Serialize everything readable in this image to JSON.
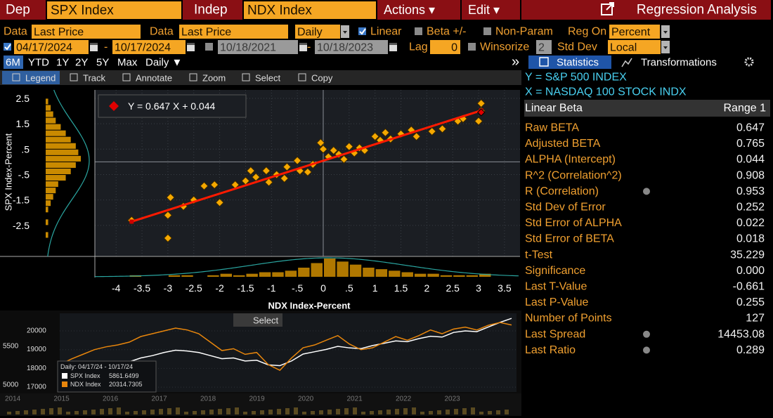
{
  "header": {
    "dep_label": "Dep",
    "dep": "SPX Index",
    "indep_label": "Indep",
    "indep": "NDX Index",
    "actions": "Actions ▾",
    "edit": "Edit ▾",
    "title": "Regression Analysis"
  },
  "row1": {
    "data1_label": "Data",
    "data1": "Last Price",
    "data2_label": "Data",
    "data2": "Last Price",
    "freq": "Daily",
    "linear": "Linear",
    "beta_pm": "Beta +/-",
    "non_param": "Non-Param",
    "reg_on_label": "Reg On",
    "reg_on": "Percent"
  },
  "row2": {
    "start": "04/17/2024",
    "range_sep": "-",
    "end": "10/17/2024",
    "start2": "10/18/2021",
    "end2": "10/18/2023",
    "lag_label": "Lag",
    "lag": "0",
    "winsorize": "Winsorize",
    "winsorize_value": "2",
    "std_dev": "Std Dev",
    "std_dev_value": "Local"
  },
  "periods": [
    "6M",
    "YTD",
    "1Y",
    "2Y",
    "5Y",
    "Max"
  ],
  "period_freq": "Daily ▼",
  "expand": "»",
  "tabs": [
    "Statistics",
    "Transformations"
  ],
  "toolbar": [
    "Legend",
    "Track",
    "Annotate",
    "Zoom",
    "Select",
    "Copy"
  ],
  "stats": {
    "y_line": "Y = S&P 500 INDEX",
    "x_line": "X = NASDAQ 100 STOCK INDX",
    "head": [
      "Linear Beta",
      "Range 1"
    ],
    "rows": [
      [
        "Raw BETA",
        "0.647"
      ],
      [
        "Adjusted BETA",
        "0.765"
      ],
      [
        "ALPHA (Intercept)",
        "0.044"
      ],
      [
        "R^2 (Correlation^2)",
        "0.908"
      ],
      [
        "R (Correlation)",
        "0.953"
      ],
      [
        "Std Dev of Error",
        "0.252"
      ],
      [
        "Std Error of ALPHA",
        "0.022"
      ],
      [
        "Std Error of BETA",
        "0.018"
      ],
      [
        "t-Test",
        "35.229"
      ],
      [
        "Significance",
        "0.000"
      ],
      [
        "Last T-Value",
        "-0.661"
      ],
      [
        "Last P-Value",
        "0.255"
      ],
      [
        "Number of Points",
        "127"
      ],
      [
        "Last Spread",
        "14453.08"
      ],
      [
        "Last Ratio",
        "0.289"
      ]
    ]
  },
  "chart_data": [
    {
      "type": "scatter",
      "x_title": "NDX Index-Percent",
      "y_title": "SPX Index-Percent",
      "color": "#f5a800",
      "x": [
        -3.7,
        -3.0,
        -3.0,
        -2.95,
        -2.7,
        -2.5,
        -2.3,
        -2.1,
        -2.0,
        -1.7,
        -1.5,
        -1.4,
        -1.3,
        -1.1,
        -1.05,
        -0.9,
        -0.75,
        -0.7,
        -0.5,
        -0.45,
        -0.3,
        -0.2,
        -0.05,
        0,
        0.1,
        0.2,
        0.3,
        0.4,
        0.5,
        0.6,
        0.7,
        0.8,
        1.0,
        1.1,
        1.2,
        1.3,
        1.5,
        1.7,
        1.8,
        2.1,
        2.3,
        2.6,
        2.7,
        3.0,
        3.05,
        3.05
      ],
      "values": [
        -2.3,
        -2.1,
        -3.0,
        -1.4,
        -1.75,
        -1.5,
        -0.95,
        -0.9,
        -1.6,
        -0.9,
        -0.75,
        -0.35,
        -0.6,
        -0.35,
        -0.8,
        -0.5,
        -0.65,
        -0.2,
        0.05,
        -0.35,
        -0.4,
        -0.1,
        0.75,
        0.5,
        0.2,
        0.45,
        0.3,
        0.1,
        0.6,
        0.35,
        0.55,
        0.45,
        1.0,
        0.85,
        1.15,
        0.9,
        1.1,
        1.25,
        1.0,
        1.2,
        1.3,
        1.6,
        1.7,
        1.6,
        2.0,
        2.3
      ],
      "last_point": {
        "x": 3.05,
        "value": 1.95,
        "color": "#e00000"
      },
      "fit": {
        "label": "Y = 0.647 X + 0.044",
        "color": "#ff1a00",
        "x": [
          -3.7,
          3.05
        ],
        "values": [
          -2.35,
          2.02
        ]
      },
      "xlim": [
        -4.41,
        3.8
      ],
      "ylim": [
        -3.72,
        2.83
      ],
      "xticks": [
        -4,
        -3.5,
        -3,
        -2.5,
        -2,
        -1.5,
        -1,
        {
          "value": -0.5,
          "label": "-.5"
        },
        0,
        {
          "value": 0.5,
          "label": ".5"
        },
        1,
        1.5,
        2,
        2.5,
        3,
        3.5
      ],
      "yticks": [
        2.5,
        1.5,
        {
          "value": 0.5,
          "label": ".5"
        },
        {
          "value": -0.5,
          "label": "-.5"
        },
        -1.5,
        -2.5
      ],
      "grid": true
    },
    {
      "type": "histogram",
      "orientation": "horizontal",
      "color": "#c98a00",
      "bins": [
        -3,
        -2.75,
        -2.5,
        -2.25,
        -2,
        -1.75,
        -1.5,
        -1.25,
        -1,
        -0.75,
        -0.5,
        -0.25,
        0,
        0.25,
        0.5,
        0.75,
        1,
        1.25,
        1.5,
        1.75,
        2,
        2.25,
        2.5
      ],
      "values": [
        1,
        0,
        1,
        0,
        1,
        2,
        3,
        4,
        5,
        8,
        10,
        12,
        14,
        13,
        12,
        10,
        8,
        6,
        4,
        3,
        2,
        1
      ]
    },
    {
      "type": "histogram",
      "orientation": "vertical",
      "color": "#b07800",
      "bins": [
        -4,
        -3.75,
        -3.5,
        -3.25,
        -3,
        -2.75,
        -2.5,
        -2.25,
        -2,
        -1.75,
        -1.5,
        -1.25,
        -1,
        -0.75,
        -0.5,
        -0.25,
        0,
        0.25,
        0.5,
        0.75,
        1,
        1.25,
        1.5,
        1.75,
        2,
        2.25,
        2.5,
        2.75,
        3,
        3.25,
        3.5
      ],
      "values": [
        0,
        1,
        0,
        0,
        1,
        1,
        0,
        1,
        2,
        1,
        2,
        3,
        3,
        4,
        6,
        9,
        12,
        10,
        8,
        6,
        5,
        4,
        3,
        2,
        2,
        1,
        1,
        1,
        2,
        0
      ]
    },
    {
      "type": "line",
      "select": "Select",
      "legend_title": "Daily: 04/17/24 - 10/17/24",
      "ylim": [
        16740,
        20900
      ],
      "yticks": [
        20000,
        19000,
        18000,
        17000
      ],
      "y2lim": [
        4909,
        5918
      ],
      "y2ticks": [
        5500,
        5000
      ],
      "years": [
        "2014",
        "2015",
        "2016",
        "2017",
        "2018",
        "2019",
        "2020",
        "2021",
        "2022",
        "2023"
      ],
      "series": [
        {
          "name": "SPX Index",
          "color": "#ffffff",
          "axis": "y2",
          "values": [
            5050,
            5100,
            5150,
            5200,
            5230,
            5250,
            5300,
            5350,
            5380,
            5420,
            5450,
            5440,
            5420,
            5380,
            5340,
            5350,
            5310,
            5320,
            5260,
            5250,
            5310,
            5400,
            5430,
            5460,
            5500,
            5480,
            5470,
            5510,
            5540,
            5570,
            5560,
            5600,
            5630,
            5620,
            5680,
            5700,
            5690,
            5750,
            5810,
            5861.6499
          ]
        },
        {
          "name": "NDX Index",
          "color": "#e8860c",
          "axis": "y",
          "values": [
            18200,
            18500,
            18750,
            19000,
            19150,
            19250,
            19400,
            19700,
            19850,
            20000,
            20150,
            20050,
            19850,
            19400,
            18950,
            19050,
            18750,
            18850,
            18200,
            17900,
            18550,
            19100,
            19250,
            19500,
            19750,
            19300,
            19000,
            19100,
            19400,
            19700,
            19500,
            19750,
            20050,
            19850,
            20100,
            20200,
            20050,
            20300,
            20450,
            20314.7305
          ]
        }
      ]
    }
  ]
}
